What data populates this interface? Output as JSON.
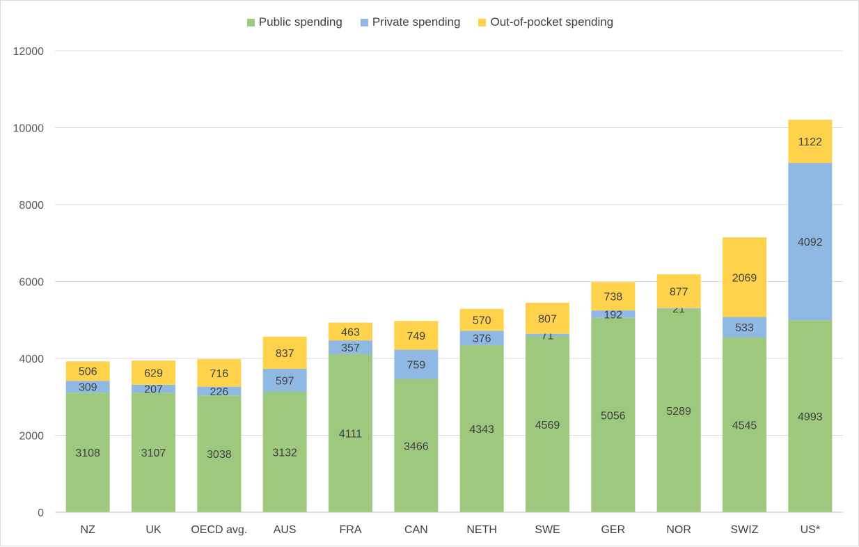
{
  "chart_data": {
    "type": "bar",
    "stacked": true,
    "title": "",
    "xlabel": "",
    "ylabel": "",
    "ylim": [
      0,
      12000
    ],
    "yticks": [
      0,
      2000,
      4000,
      6000,
      8000,
      10000,
      12000
    ],
    "grid": true,
    "legend_position": "top-center",
    "categories": [
      "NZ",
      "UK",
      "OECD avg.",
      "AUS",
      "FRA",
      "CAN",
      "NETH",
      "SWE",
      "GER",
      "NOR",
      "SWIZ",
      "US*"
    ],
    "series": [
      {
        "name": "Public spending",
        "color": "#9dc87e",
        "values": [
          3108,
          3107,
          3038,
          3132,
          4111,
          3466,
          4343,
          4569,
          5056,
          5289,
          4545,
          4993
        ]
      },
      {
        "name": "Private spending",
        "color": "#8fb9e2",
        "values": [
          309,
          207,
          226,
          597,
          357,
          759,
          376,
          71,
          192,
          21,
          533,
          4092
        ]
      },
      {
        "name": "Out-of-pocket spending",
        "color": "#ffd24c",
        "values": [
          506,
          629,
          716,
          837,
          463,
          749,
          570,
          807,
          738,
          877,
          2069,
          1122
        ]
      }
    ]
  }
}
